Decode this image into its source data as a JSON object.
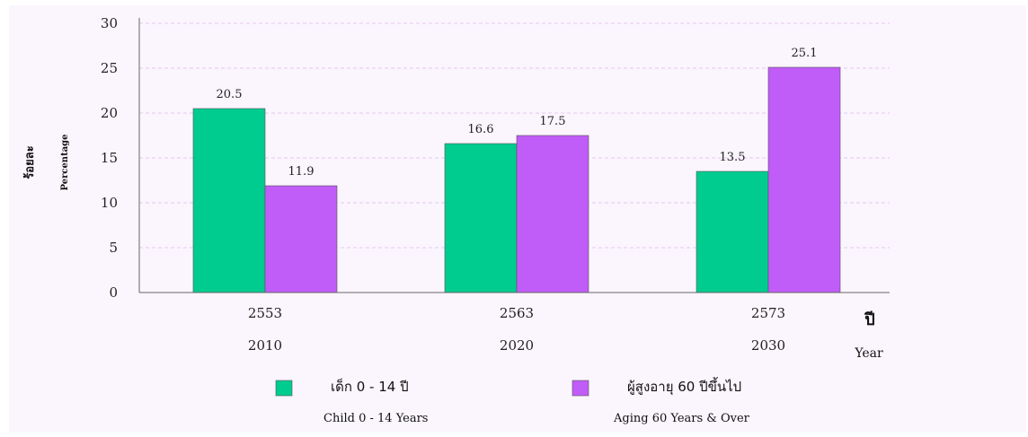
{
  "chart_data": {
    "type": "bar",
    "categories": [
      "2553",
      "2563",
      "2573"
    ],
    "categories_secondary": [
      "2010",
      "2020",
      "2030"
    ],
    "series": [
      {
        "name": "เด็ก 0 - 14 ปี",
        "name_secondary": "Child 0 - 14 Years",
        "color": "#00cc8f",
        "values": [
          20.5,
          16.6,
          13.5
        ]
      },
      {
        "name": "ผู้สูงอายุ 60 ปีขึ้นไป",
        "name_secondary": "Aging 60 Years & Over",
        "color": "#c05cf7",
        "values": [
          11.9,
          17.5,
          25.1
        ]
      }
    ],
    "ylabel": "ร้อยละ",
    "ylabel_secondary": "Percentage",
    "xlabel": "ปี",
    "xlabel_secondary": "Year",
    "ylim": [
      0,
      30
    ],
    "yticks": [
      0,
      5,
      10,
      15,
      20,
      25,
      30
    ],
    "grid": true,
    "legend_position": "bottom"
  }
}
